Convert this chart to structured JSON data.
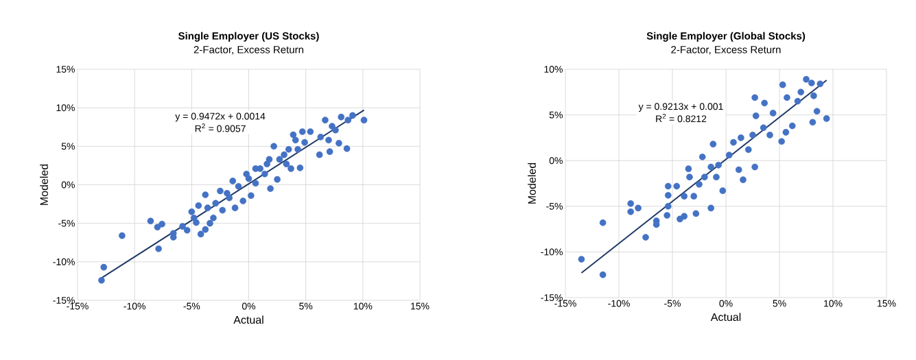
{
  "chart_data": [
    {
      "type": "scatter",
      "title": "Single Employer (US Stocks)",
      "subtitle": "2-Factor, Excess Return",
      "xlabel": "Actual",
      "ylabel": "Modeled",
      "xlim": [
        -15,
        15
      ],
      "ylim": [
        -15,
        15
      ],
      "xticks": [
        {
          "value": -15,
          "label": "-15%"
        },
        {
          "value": -10,
          "label": "-10%"
        },
        {
          "value": -5,
          "label": "-5%"
        },
        {
          "value": 0,
          "label": "0%"
        },
        {
          "value": 5,
          "label": "5%"
        },
        {
          "value": 10,
          "label": "10%"
        },
        {
          "value": 15,
          "label": "15%"
        }
      ],
      "yticks": [
        {
          "value": -15,
          "label": "-15%"
        },
        {
          "value": -10,
          "label": "-10%"
        },
        {
          "value": -5,
          "label": "-5%"
        },
        {
          "value": 0,
          "label": "0%"
        },
        {
          "value": 5,
          "label": "5%"
        },
        {
          "value": 10,
          "label": "10%"
        },
        {
          "value": 15,
          "label": "15%"
        }
      ],
      "grid": true,
      "marker": "circle",
      "annotations": [
        "y = 0.9472x + 0.0014",
        "R$^{2}$ = 0.9057"
      ],
      "series": [
        {
          "color": "#4472c4",
          "x": [
            -12.9,
            -12.7,
            -11.1,
            -8.6,
            -8.0,
            -7.6,
            -7.9,
            -6.6,
            -6.6,
            -5.8,
            -5.4,
            -5.0,
            -4.4,
            -4.2,
            -3.8,
            -3.8,
            -3.4,
            -2.5,
            -2.3,
            -1.4,
            -1.2,
            -0.5,
            0.2,
            -0.2,
            0.6,
            1.9,
            1.6,
            2.5,
            2.2,
            2.7,
            3.7,
            4.5,
            3.9,
            4.7,
            5.4,
            4.3,
            6.2,
            6.3,
            7.1,
            7.0,
            6.7,
            7.3,
            7.6,
            7.9,
            8.6,
            8.1,
            8.7,
            9.1,
            10.1,
            -3.6,
            -2.9,
            -1.9,
            -0.9,
            0.0,
            1.0,
            1.4,
            1.8,
            3.1,
            3.5,
            4.1,
            4.9,
            -4.8,
            -4.6,
            -3.1,
            -1.7,
            0.6,
            3.3
          ],
          "values": [
            -12.4,
            -10.7,
            -6.6,
            -4.7,
            -5.5,
            -5.1,
            -8.3,
            -6.3,
            -6.8,
            -5.4,
            -5.9,
            -3.5,
            -2.7,
            -6.4,
            -1.3,
            -5.8,
            -5.0,
            -0.8,
            -3.3,
            0.5,
            -3.0,
            -2.1,
            -1.4,
            1.4,
            2.1,
            -0.5,
            2.7,
            0.7,
            5.0,
            3.3,
            2.1,
            2.2,
            6.5,
            6.9,
            6.9,
            4.6,
            3.9,
            6.2,
            4.3,
            5.8,
            8.4,
            7.6,
            7.1,
            5.4,
            4.7,
            8.8,
            8.4,
            9.0,
            8.4,
            -3.0,
            -2.4,
            -1.1,
            -0.2,
            0.8,
            2.1,
            1.4,
            3.3,
            3.9,
            4.6,
            5.8,
            5.5,
            -4.3,
            -4.9,
            -4.3,
            -1.7,
            0.2,
            2.7
          ]
        },
        {
          "type": "line",
          "color": "#1f3864",
          "marker": "none",
          "x": [
            -12.9,
            10.1
          ],
          "values": [
            -12.1,
            9.7
          ]
        }
      ]
    },
    {
      "type": "scatter",
      "title": "Single Employer (Global Stocks)",
      "subtitle": "2-Factor, Excess Return",
      "xlabel": "Actual",
      "ylabel": "Modeled",
      "xlim": [
        -15,
        15
      ],
      "ylim": [
        -15,
        10
      ],
      "xticks": [
        {
          "value": -15,
          "label": "-15%"
        },
        {
          "value": -10,
          "label": "-10%"
        },
        {
          "value": -5,
          "label": "-5%"
        },
        {
          "value": 0,
          "label": "0%"
        },
        {
          "value": 5,
          "label": "5%"
        },
        {
          "value": 10,
          "label": "10%"
        },
        {
          "value": 15,
          "label": "15%"
        }
      ],
      "yticks": [
        {
          "value": -15,
          "label": "-15%"
        },
        {
          "value": -10,
          "label": "-10%"
        },
        {
          "value": -5,
          "label": "-5%"
        },
        {
          "value": 0,
          "label": "0%"
        },
        {
          "value": 5,
          "label": "5%"
        },
        {
          "value": 10,
          "label": "10%"
        }
      ],
      "grid": true,
      "marker": "circle",
      "annotations": [
        "y = 0.9213x + 0.001",
        "R$^{2}$ = 0.8212"
      ],
      "series": [
        {
          "color": "#4472c4",
          "x": [
            -13.5,
            -11.5,
            -11.5,
            -8.9,
            -8.9,
            -8.2,
            -7.5,
            -6.5,
            -6.5,
            -5.5,
            -5.4,
            -5.4,
            -5.4,
            -4.6,
            -4.3,
            -3.9,
            -2.8,
            -1.4,
            -3.5,
            -2.2,
            -1.2,
            -0.3,
            1.6,
            2.7,
            2.7,
            3.6,
            5.3,
            5.2,
            5.6,
            6.2,
            5.7,
            6.7,
            7.0,
            7.5,
            8.0,
            8.8,
            8.2,
            8.5,
            8.1,
            9.4,
            -3.4,
            -2.5,
            -2.0,
            -1.4,
            -0.7,
            0.3,
            0.7,
            1.4,
            2.1,
            2.5,
            2.8,
            3.5,
            4.4,
            4.1,
            -0.9,
            -3.0,
            -3.9,
            1.2
          ],
          "values": [
            -10.8,
            -12.5,
            -6.8,
            -4.7,
            -5.6,
            -5.2,
            -8.4,
            -6.6,
            -7.0,
            -6.0,
            -5.0,
            -2.8,
            -3.8,
            -2.8,
            -6.4,
            -6.1,
            -5.8,
            -5.2,
            -0.9,
            0.4,
            1.8,
            -3.3,
            -2.1,
            -0.7,
            6.9,
            6.3,
            8.3,
            2.1,
            3.1,
            3.8,
            6.9,
            6.5,
            7.5,
            8.9,
            8.5,
            8.4,
            7.1,
            5.4,
            4.2,
            4.6,
            -1.8,
            -2.6,
            -1.8,
            -0.7,
            -0.5,
            0.6,
            2.0,
            2.5,
            1.2,
            2.8,
            4.9,
            3.6,
            5.2,
            2.8,
            -1.8,
            -3.9,
            -3.9,
            -1.0
          ]
        },
        {
          "type": "line",
          "color": "#1f3864",
          "marker": "none",
          "x": [
            -13.5,
            9.4
          ],
          "values": [
            -12.3,
            8.8
          ]
        }
      ]
    }
  ]
}
